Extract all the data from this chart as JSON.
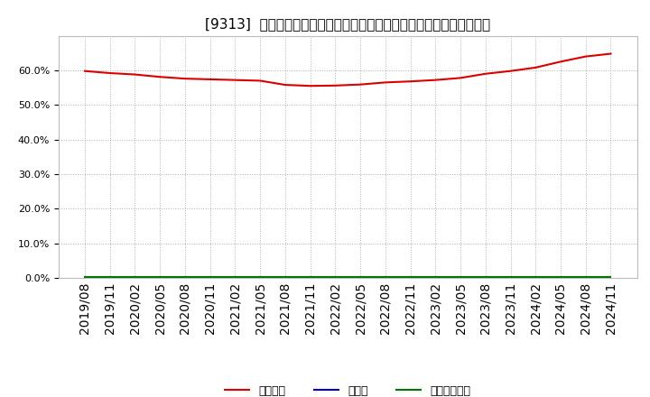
{
  "title": "[9313]  自己資本、のれん、繰延税金資産の総資産に対する比率の推移",
  "background_color": "#ffffff",
  "plot_background_color": "#ffffff",
  "grid_color": "#b0b0b0",
  "x_labels": [
    "2019/08",
    "2019/11",
    "2020/02",
    "2020/05",
    "2020/08",
    "2020/11",
    "2021/02",
    "2021/05",
    "2021/08",
    "2021/11",
    "2022/02",
    "2022/05",
    "2022/08",
    "2022/11",
    "2023/02",
    "2023/05",
    "2023/08",
    "2023/11",
    "2024/02",
    "2024/05",
    "2024/08",
    "2024/11"
  ],
  "equity_ratio": [
    59.8,
    59.2,
    58.8,
    58.1,
    57.6,
    57.4,
    57.2,
    57.0,
    55.8,
    55.5,
    55.6,
    55.9,
    56.5,
    56.8,
    57.2,
    57.8,
    59.0,
    59.8,
    60.8,
    62.5,
    64.0,
    64.8
  ],
  "goodwill_ratio": [
    0.0,
    0.0,
    0.0,
    0.0,
    0.0,
    0.0,
    0.0,
    0.0,
    0.0,
    0.0,
    0.0,
    0.0,
    0.0,
    0.0,
    0.0,
    0.0,
    0.0,
    0.0,
    0.0,
    0.0,
    0.0,
    0.0
  ],
  "deferred_tax_ratio": [
    0.3,
    0.3,
    0.3,
    0.3,
    0.3,
    0.3,
    0.3,
    0.3,
    0.3,
    0.3,
    0.3,
    0.3,
    0.3,
    0.3,
    0.3,
    0.3,
    0.3,
    0.3,
    0.3,
    0.3,
    0.3,
    0.3
  ],
  "equity_color": "#dd0000",
  "goodwill_color": "#0000cc",
  "deferred_tax_color": "#007700",
  "equity_label": "自己資本",
  "goodwill_label": "のれん",
  "deferred_tax_label": "繰延税金資産",
  "ylim": [
    0.0,
    70.0
  ],
  "yticks": [
    0.0,
    10.0,
    20.0,
    30.0,
    40.0,
    50.0,
    60.0
  ],
  "line_width": 1.5,
  "title_fontsize": 11
}
